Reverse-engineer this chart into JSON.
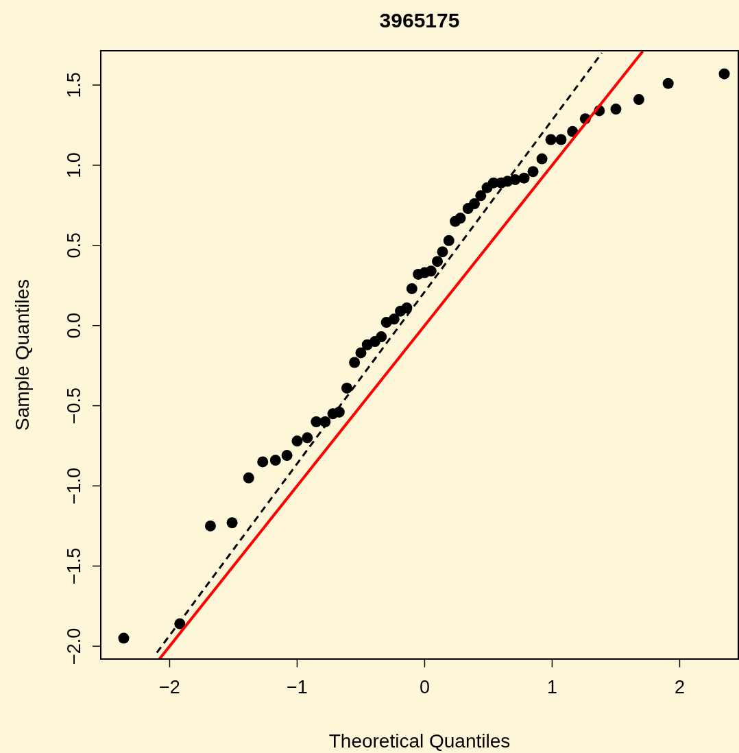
{
  "chart_data": {
    "type": "scatter",
    "title": "3965175",
    "xlabel": "Theoretical Quantiles",
    "ylabel": "Sample Quantiles",
    "xlim": [
      -2.54,
      2.46
    ],
    "ylim": [
      -2.08,
      1.714
    ],
    "xticks": [
      {
        "value": -2,
        "label": "−2"
      },
      {
        "value": -1,
        "label": "−1"
      },
      0,
      1,
      2
    ],
    "yticks": [
      {
        "value": -2,
        "label": "−2.0"
      },
      {
        "value": -1.5,
        "label": "−1.5"
      },
      {
        "value": -1,
        "label": "−1.0"
      },
      {
        "value": -0.5,
        "label": "−0.5"
      },
      {
        "value": 0,
        "label": "0.0"
      },
      {
        "value": 0.5,
        "label": "0.5"
      },
      {
        "value": 1,
        "label": "1.0"
      },
      {
        "value": 1.5,
        "label": "1.5"
      }
    ],
    "grid": false,
    "series": [
      {
        "marker": "circle",
        "color": "#000000",
        "x": [
          -2.36,
          -1.92,
          -1.68,
          -1.51,
          -1.38,
          -1.27,
          -1.17,
          -1.08,
          -1.0,
          -0.92,
          -0.85,
          -0.78,
          -0.72,
          -0.67,
          -0.61,
          -0.55,
          -0.5,
          -0.45,
          -0.39,
          -0.34,
          -0.3,
          -0.24,
          -0.19,
          -0.14,
          -0.1,
          -0.05,
          0,
          0.05,
          0.1,
          0.14,
          0.19,
          0.24,
          0.28,
          0.34,
          0.39,
          0.44,
          0.49,
          0.54,
          0.6,
          0.65,
          0.71,
          0.78,
          0.85,
          0.92,
          0.99,
          1.07,
          1.16,
          1.26,
          1.37,
          1.5,
          1.68,
          1.91,
          2.35
        ],
        "values": [
          -1.95,
          -1.86,
          -1.25,
          -1.23,
          -0.95,
          -0.85,
          -0.84,
          -0.81,
          -0.72,
          -0.7,
          -0.6,
          -0.6,
          -0.55,
          -0.54,
          -0.39,
          -0.23,
          -0.17,
          -0.12,
          -0.1,
          -0.07,
          0.02,
          0.04,
          0.09,
          0.11,
          0.23,
          0.32,
          0.33,
          0.34,
          0.4,
          0.46,
          0.53,
          0.65,
          0.67,
          0.73,
          0.76,
          0.81,
          0.86,
          0.89,
          0.89,
          0.9,
          0.91,
          0.92,
          0.96,
          1.04,
          1.16,
          1.16,
          1.21,
          1.29,
          1.34,
          1.35,
          1.41,
          1.51,
          1.57
        ]
      },
      {
        "type": "line",
        "color": "#000000",
        "line_style": "dashed",
        "x": [
          -2.1,
          1.39
        ],
        "values": [
          -2.04,
          1.7
        ]
      },
      {
        "type": "line",
        "color": "#ff0000",
        "line_style": "solid",
        "x": [
          -2.08,
          1.71
        ],
        "values": [
          -2.08,
          1.71
        ]
      }
    ]
  }
}
